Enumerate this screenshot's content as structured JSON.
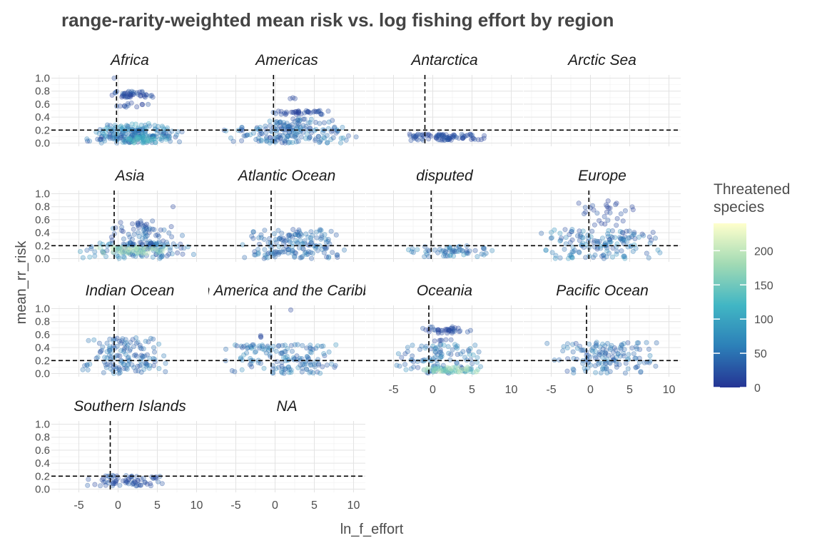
{
  "chart_data": {
    "type": "scatter",
    "title": "range-rarity-weighted mean risk vs. log fishing effort by region",
    "xlabel": "ln_f_effort",
    "ylabel": "mean_rr_risk",
    "x_ticks": [
      -5,
      0,
      5,
      10
    ],
    "x_tick_labels": [
      "-5",
      "0",
      "5",
      "10"
    ],
    "y_ticks": [
      0.0,
      0.2,
      0.4,
      0.6,
      0.8,
      1.0
    ],
    "y_tick_labels": [
      "0.0",
      "0.2",
      "0.4",
      "0.6",
      "0.8",
      "1.0"
    ],
    "xlim": [
      -8.5,
      11.5
    ],
    "ylim": [
      -0.05,
      1.05
    ],
    "risk_threshold_line": 0.2,
    "grid": true,
    "legend": {
      "title": "Threatened species",
      "placement": "right",
      "breaks": [
        0,
        50,
        100,
        150,
        200
      ],
      "break_labels": [
        "0",
        "50",
        "100",
        "150",
        "200"
      ],
      "range": [
        0,
        240
      ],
      "colors": [
        "#253494",
        "#2c7fb8",
        "#41b6c4",
        "#a1dab4",
        "#ffffcc"
      ]
    },
    "point_alpha": 0.3,
    "panels": [
      {
        "region": "Africa",
        "effort_line": -0.2,
        "clusters": [
          {
            "x": [
              -5.5,
              9.0
            ],
            "y": [
              0.0,
              0.22
            ],
            "c": [
              10,
              70
            ],
            "n": 120
          },
          {
            "x": [
              -3.0,
              7.5
            ],
            "y": [
              0.05,
              0.3
            ],
            "c": [
              40,
              110
            ],
            "n": 90
          },
          {
            "x": [
              0.0,
              6.0
            ],
            "y": [
              0.0,
              0.1
            ],
            "c": [
              80,
              150
            ],
            "n": 35
          },
          {
            "x": [
              -1.5,
              5.0
            ],
            "y": [
              0.7,
              0.8
            ],
            "c": [
              5,
              35
            ],
            "n": 45
          },
          {
            "x": [
              -2.0,
              5.0
            ],
            "y": [
              0.55,
              0.62
            ],
            "c": [
              5,
              30
            ],
            "n": 12
          },
          {
            "x": [
              -0.5,
              -0.5
            ],
            "y": [
              1.0,
              1.0
            ],
            "c": [
              20,
              20
            ],
            "n": 1
          }
        ]
      },
      {
        "region": "Americas",
        "effort_line": -0.2,
        "clusters": [
          {
            "x": [
              -7.0,
              10.5
            ],
            "y": [
              0.0,
              0.25
            ],
            "c": [
              15,
              80
            ],
            "n": 130
          },
          {
            "x": [
              -3.0,
              8.0
            ],
            "y": [
              0.15,
              0.38
            ],
            "c": [
              20,
              70
            ],
            "n": 60
          },
          {
            "x": [
              -1.5,
              8.0
            ],
            "y": [
              0.44,
              0.5
            ],
            "c": [
              5,
              30
            ],
            "n": 40
          },
          {
            "x": [
              1.5,
              3.5
            ],
            "y": [
              0.68,
              0.7
            ],
            "c": [
              10,
              20
            ],
            "n": 3
          }
        ]
      },
      {
        "region": "Antarctica",
        "effort_line": -1.0,
        "clusters": [
          {
            "x": [
              -4.0,
              7.0
            ],
            "y": [
              0.04,
              0.14
            ],
            "c": [
              5,
              30
            ],
            "n": 90
          }
        ]
      },
      {
        "region": "Arctic Sea",
        "effort_line": null,
        "clusters": []
      },
      {
        "region": "Asia",
        "effort_line": -0.5,
        "clusters": [
          {
            "x": [
              -5.0,
              10.0
            ],
            "y": [
              0.0,
              0.25
            ],
            "c": [
              10,
              90
            ],
            "n": 120
          },
          {
            "x": [
              -3.0,
              7.0
            ],
            "y": [
              0.08,
              0.18
            ],
            "c": [
              150,
              230
            ],
            "n": 60
          },
          {
            "x": [
              -2.0,
              8.5
            ],
            "y": [
              0.2,
              0.5
            ],
            "c": [
              10,
              60
            ],
            "n": 60
          },
          {
            "x": [
              0.0,
              6.0
            ],
            "y": [
              0.5,
              0.58
            ],
            "c": [
              10,
              30
            ],
            "n": 12
          },
          {
            "x": [
              7.0,
              7.0
            ],
            "y": [
              0.8,
              0.8
            ],
            "c": [
              10,
              10
            ],
            "n": 1
          }
        ]
      },
      {
        "region": "Atlantic Ocean",
        "effort_line": -0.5,
        "clusters": [
          {
            "x": [
              -4.5,
              9.5
            ],
            "y": [
              0.0,
              0.45
            ],
            "c": [
              20,
              70
            ],
            "n": 160
          }
        ]
      },
      {
        "region": "disputed",
        "effort_line": -0.2,
        "clusters": [
          {
            "x": [
              -4.0,
              9.0
            ],
            "y": [
              0.03,
              0.2
            ],
            "c": [
              20,
              90
            ],
            "n": 60
          }
        ]
      },
      {
        "region": "Europe",
        "effort_line": -0.2,
        "clusters": [
          {
            "x": [
              -7.5,
              10.0
            ],
            "y": [
              0.0,
              0.45
            ],
            "c": [
              15,
              90
            ],
            "n": 150
          },
          {
            "x": [
              -2.0,
              6.0
            ],
            "y": [
              0.5,
              0.92
            ],
            "c": [
              5,
              30
            ],
            "n": 30
          }
        ]
      },
      {
        "region": "Indian Ocean",
        "effort_line": -0.5,
        "clusters": [
          {
            "x": [
              -5.0,
              7.0
            ],
            "y": [
              0.0,
              0.55
            ],
            "c": [
              20,
              70
            ],
            "n": 140
          }
        ]
      },
      {
        "region": "Latin America and the Caribbean",
        "effort_line": -0.5,
        "clusters": [
          {
            "x": [
              -7.0,
              9.5
            ],
            "y": [
              0.0,
              0.45
            ],
            "c": [
              20,
              80
            ],
            "n": 150
          },
          {
            "x": [
              -2.0,
              -1.0
            ],
            "y": [
              0.55,
              0.6
            ],
            "c": [
              10,
              20
            ],
            "n": 3
          },
          {
            "x": [
              2.0,
              2.0
            ],
            "y": [
              0.98,
              0.98
            ],
            "c": [
              10,
              10
            ],
            "n": 1
          }
        ]
      },
      {
        "region": "Oceania",
        "effort_line": -0.5,
        "clusters": [
          {
            "x": [
              -5.0,
              7.5
            ],
            "y": [
              0.0,
              0.45
            ],
            "c": [
              20,
              90
            ],
            "n": 110
          },
          {
            "x": [
              -1.5,
              6.5
            ],
            "y": [
              0.02,
              0.1
            ],
            "c": [
              120,
              220
            ],
            "n": 60
          },
          {
            "x": [
              -1.5,
              5.0
            ],
            "y": [
              0.62,
              0.72
            ],
            "c": [
              5,
              30
            ],
            "n": 40
          },
          {
            "x": [
              -1.0,
              4.0
            ],
            "y": [
              0.5,
              0.55
            ],
            "c": [
              10,
              30
            ],
            "n": 6
          }
        ]
      },
      {
        "region": "Pacific Ocean",
        "effort_line": -0.5,
        "clusters": [
          {
            "x": [
              -6.5,
              10.0
            ],
            "y": [
              0.0,
              0.48
            ],
            "c": [
              20,
              70
            ],
            "n": 140
          }
        ]
      },
      {
        "region": "Southern Islands",
        "effort_line": -1.0,
        "clusters": [
          {
            "x": [
              -5.0,
              6.5
            ],
            "y": [
              0.05,
              0.22
            ],
            "c": [
              10,
              40
            ],
            "n": 70
          }
        ]
      },
      {
        "region": "NA",
        "effort_line": null,
        "clusters": []
      }
    ]
  }
}
